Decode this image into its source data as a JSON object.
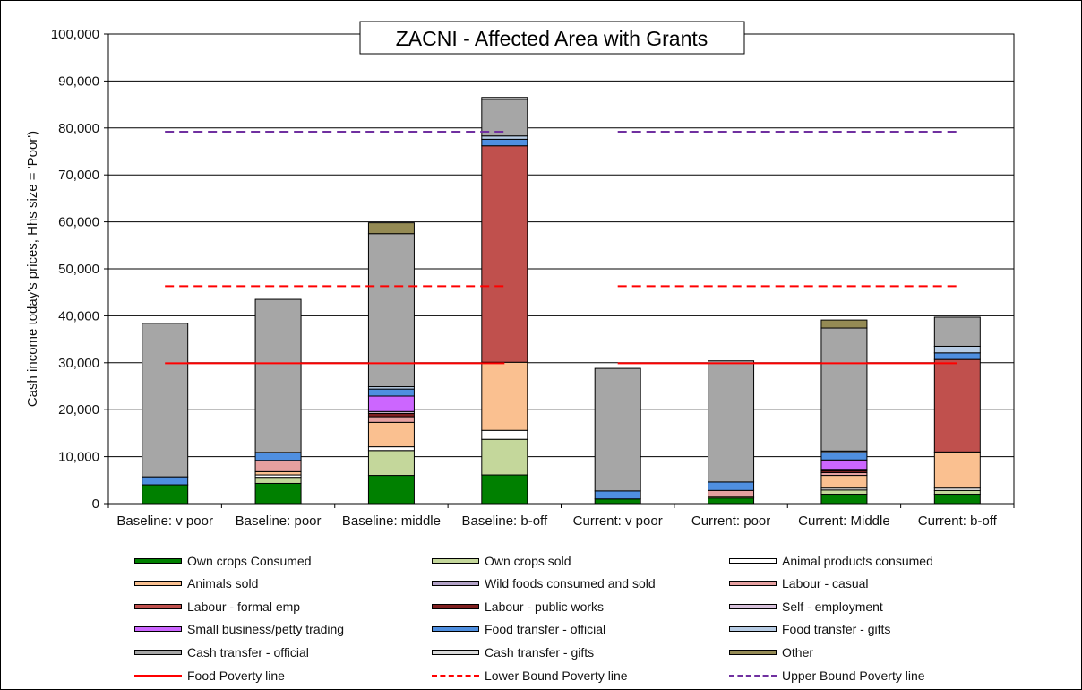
{
  "chart_data": {
    "type": "bar",
    "stacked": true,
    "title": "ZACNI - Affected Area with Grants",
    "ylabel": "Cash income today's prices, Hhs size = 'Poor')",
    "xlabel": "",
    "ylim": [
      0,
      100000
    ],
    "yticks": [
      "0",
      "10,000",
      "20,000",
      "30,000",
      "40,000",
      "50,000",
      "60,000",
      "70,000",
      "80,000",
      "90,000",
      "100,000"
    ],
    "grid": true,
    "legend_position": "bottom",
    "categories": [
      "Baseline: v poor",
      "Baseline: poor",
      "Baseline: middle",
      "Baseline: b-off",
      "Current: v poor",
      "Current: poor",
      "Current: Middle",
      "Current: b-off"
    ],
    "series": [
      {
        "name": "Own crops Consumed",
        "color": "#008000",
        "values": [
          4000,
          4300,
          6000,
          6100,
          1000,
          1200,
          2000,
          2000
        ]
      },
      {
        "name": "Own crops sold",
        "color": "#c4d79b",
        "values": [
          0,
          1300,
          5300,
          7600,
          0,
          0,
          900,
          800
        ]
      },
      {
        "name": "Animal products consumed",
        "color": "#ffffff",
        "values": [
          0,
          500,
          800,
          1900,
          0,
          0,
          400,
          500
        ]
      },
      {
        "name": "Animals sold",
        "color": "#fac090",
        "values": [
          0,
          700,
          5200,
          14500,
          0,
          300,
          2700,
          7700
        ]
      },
      {
        "name": "Wild foods consumed and sold",
        "color": "#b3a2c7",
        "values": [
          0,
          0,
          0,
          0,
          0,
          0,
          0,
          0
        ]
      },
      {
        "name": "Labour - casual",
        "color": "#e6a0a0",
        "values": [
          0,
          2400,
          1200,
          0,
          0,
          1300,
          600,
          0
        ]
      },
      {
        "name": "Labour - formal emp",
        "color": "#c0504d",
        "values": [
          0,
          0,
          0,
          46100,
          0,
          0,
          0,
          19700
        ]
      },
      {
        "name": "Labour - public works",
        "color": "#7f1f1f",
        "values": [
          0,
          0,
          700,
          0,
          0,
          0,
          400,
          0
        ]
      },
      {
        "name": "Self - employment",
        "color": "#d9c3dc",
        "values": [
          0,
          0,
          400,
          0,
          0,
          0,
          300,
          0
        ]
      },
      {
        "name": "Small business/petty trading",
        "color": "#cc66ff",
        "values": [
          0,
          0,
          3300,
          0,
          0,
          0,
          2000,
          0
        ]
      },
      {
        "name": "Food transfer - official",
        "color": "#4f8fe0",
        "values": [
          1700,
          1700,
          1500,
          1400,
          1700,
          1800,
          1600,
          1400
        ]
      },
      {
        "name": "Food transfer - gifts",
        "color": "#b7cce4",
        "values": [
          0,
          0,
          500,
          700,
          0,
          0,
          300,
          1400
        ]
      },
      {
        "name": "Cash transfer - official",
        "color": "#a6a6a6",
        "values": [
          32700,
          32600,
          32600,
          7800,
          26100,
          25800,
          26200,
          6200
        ]
      },
      {
        "name": "Cash transfer - gifts",
        "color": "#d9d9d9",
        "values": [
          0,
          0,
          0,
          400,
          0,
          0,
          0,
          0
        ]
      },
      {
        "name": "Other",
        "color": "#948a54",
        "values": [
          0,
          0,
          2300,
          0,
          0,
          0,
          1700,
          0
        ]
      }
    ],
    "lines": [
      {
        "name": "Food Poverty line",
        "color": "#ff0000",
        "style": "solid",
        "values": [
          29900,
          29900,
          29900,
          29900,
          29900,
          29900,
          29900,
          29900
        ]
      },
      {
        "name": "Lower Bound Poverty line",
        "color": "#ff0000",
        "style": "dashed",
        "values": [
          46300,
          46300,
          46300,
          46300,
          46300,
          46300,
          46300,
          46300
        ]
      },
      {
        "name": "Upper Bound Poverty line",
        "color": "#7030a0",
        "style": "dashed",
        "values": [
          79200,
          79200,
          79200,
          79200,
          79200,
          79200,
          79200,
          79200
        ]
      }
    ]
  },
  "legend": [
    {
      "label": "Own crops Consumed",
      "type": "box",
      "color": "#008000"
    },
    {
      "label": "Own crops sold",
      "type": "box",
      "color": "#c4d79b"
    },
    {
      "label": "Animal products consumed",
      "type": "box",
      "color": "#ffffff"
    },
    {
      "label": "Animals sold",
      "type": "box",
      "color": "#fac090"
    },
    {
      "label": "Wild foods consumed and sold",
      "type": "box",
      "color": "#b3a2c7"
    },
    {
      "label": "Labour - casual",
      "type": "box",
      "color": "#e6a0a0"
    },
    {
      "label": "Labour - formal emp",
      "type": "box",
      "color": "#c0504d"
    },
    {
      "label": "Labour - public works",
      "type": "box",
      "color": "#7f1f1f"
    },
    {
      "label": "Self - employment",
      "type": "box",
      "color": "#d9c3dc"
    },
    {
      "label": "Small business/petty trading",
      "type": "box",
      "color": "#cc66ff"
    },
    {
      "label": "Food transfer - official",
      "type": "box",
      "color": "#4f8fe0"
    },
    {
      "label": "Food transfer - gifts",
      "type": "box",
      "color": "#b7cce4"
    },
    {
      "label": "Cash transfer - official",
      "type": "box",
      "color": "#a6a6a6"
    },
    {
      "label": "Cash transfer - gifts",
      "type": "box",
      "color": "#d9d9d9"
    },
    {
      "label": "Other",
      "type": "box",
      "color": "#948a54"
    },
    {
      "label": "Food Poverty line",
      "type": "solid",
      "color": "#ff0000"
    },
    {
      "label": "Lower Bound Poverty line",
      "type": "dashed",
      "color": "#ff0000"
    },
    {
      "label": "Upper Bound Poverty line",
      "type": "dashed",
      "color": "#7030a0"
    }
  ]
}
